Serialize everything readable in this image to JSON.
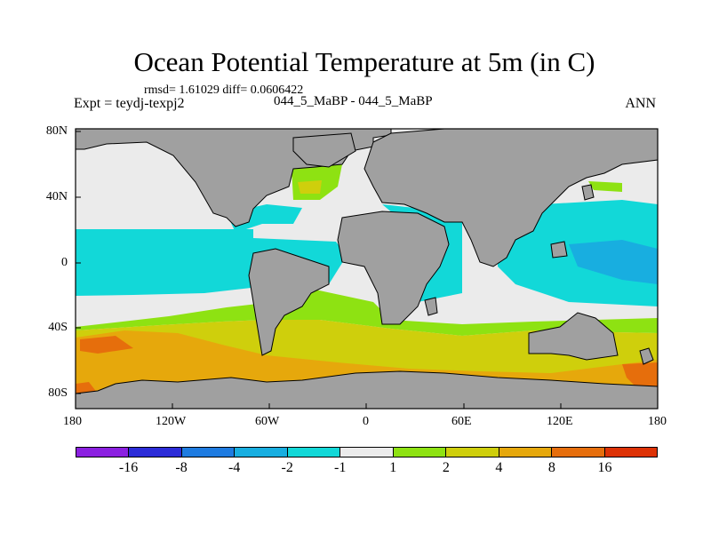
{
  "title": "Ocean Potential Temperature at 5m (in C)",
  "stats": "rmsd= 1.61029 diff= 0.0606422",
  "left_label": "Expt = teydj-texpj2",
  "center_label": "044_5_MaBP - 044_5_MaBP",
  "right_label": "ANN",
  "x_ticks": [
    "180",
    "120W",
    "60W",
    "0",
    "60E",
    "120E",
    "180"
  ],
  "y_ticks": [
    "80N",
    "40N",
    "0",
    "40S",
    "80S"
  ],
  "colorbar": {
    "labels": [
      "-16",
      "-8",
      "-4",
      "-2",
      "-1",
      "1",
      "2",
      "4",
      "8",
      "16"
    ],
    "colors": [
      "#8b20e0",
      "#2c2cd8",
      "#1e7be0",
      "#18aee0",
      "#12d8d8",
      "#ebebeb",
      "#8ee212",
      "#cfcf0c",
      "#e6a80c",
      "#e66e0c",
      "#dd3206"
    ]
  },
  "colors": {
    "land": "#a0a0a0",
    "neutral": "#ebebeb",
    "cyan": "#12d8d8",
    "blue": "#18aee0",
    "green": "#8ee212",
    "yellow": "#cfcf0c",
    "orange": "#e6a80c",
    "dark_orange": "#e66e0c"
  }
}
